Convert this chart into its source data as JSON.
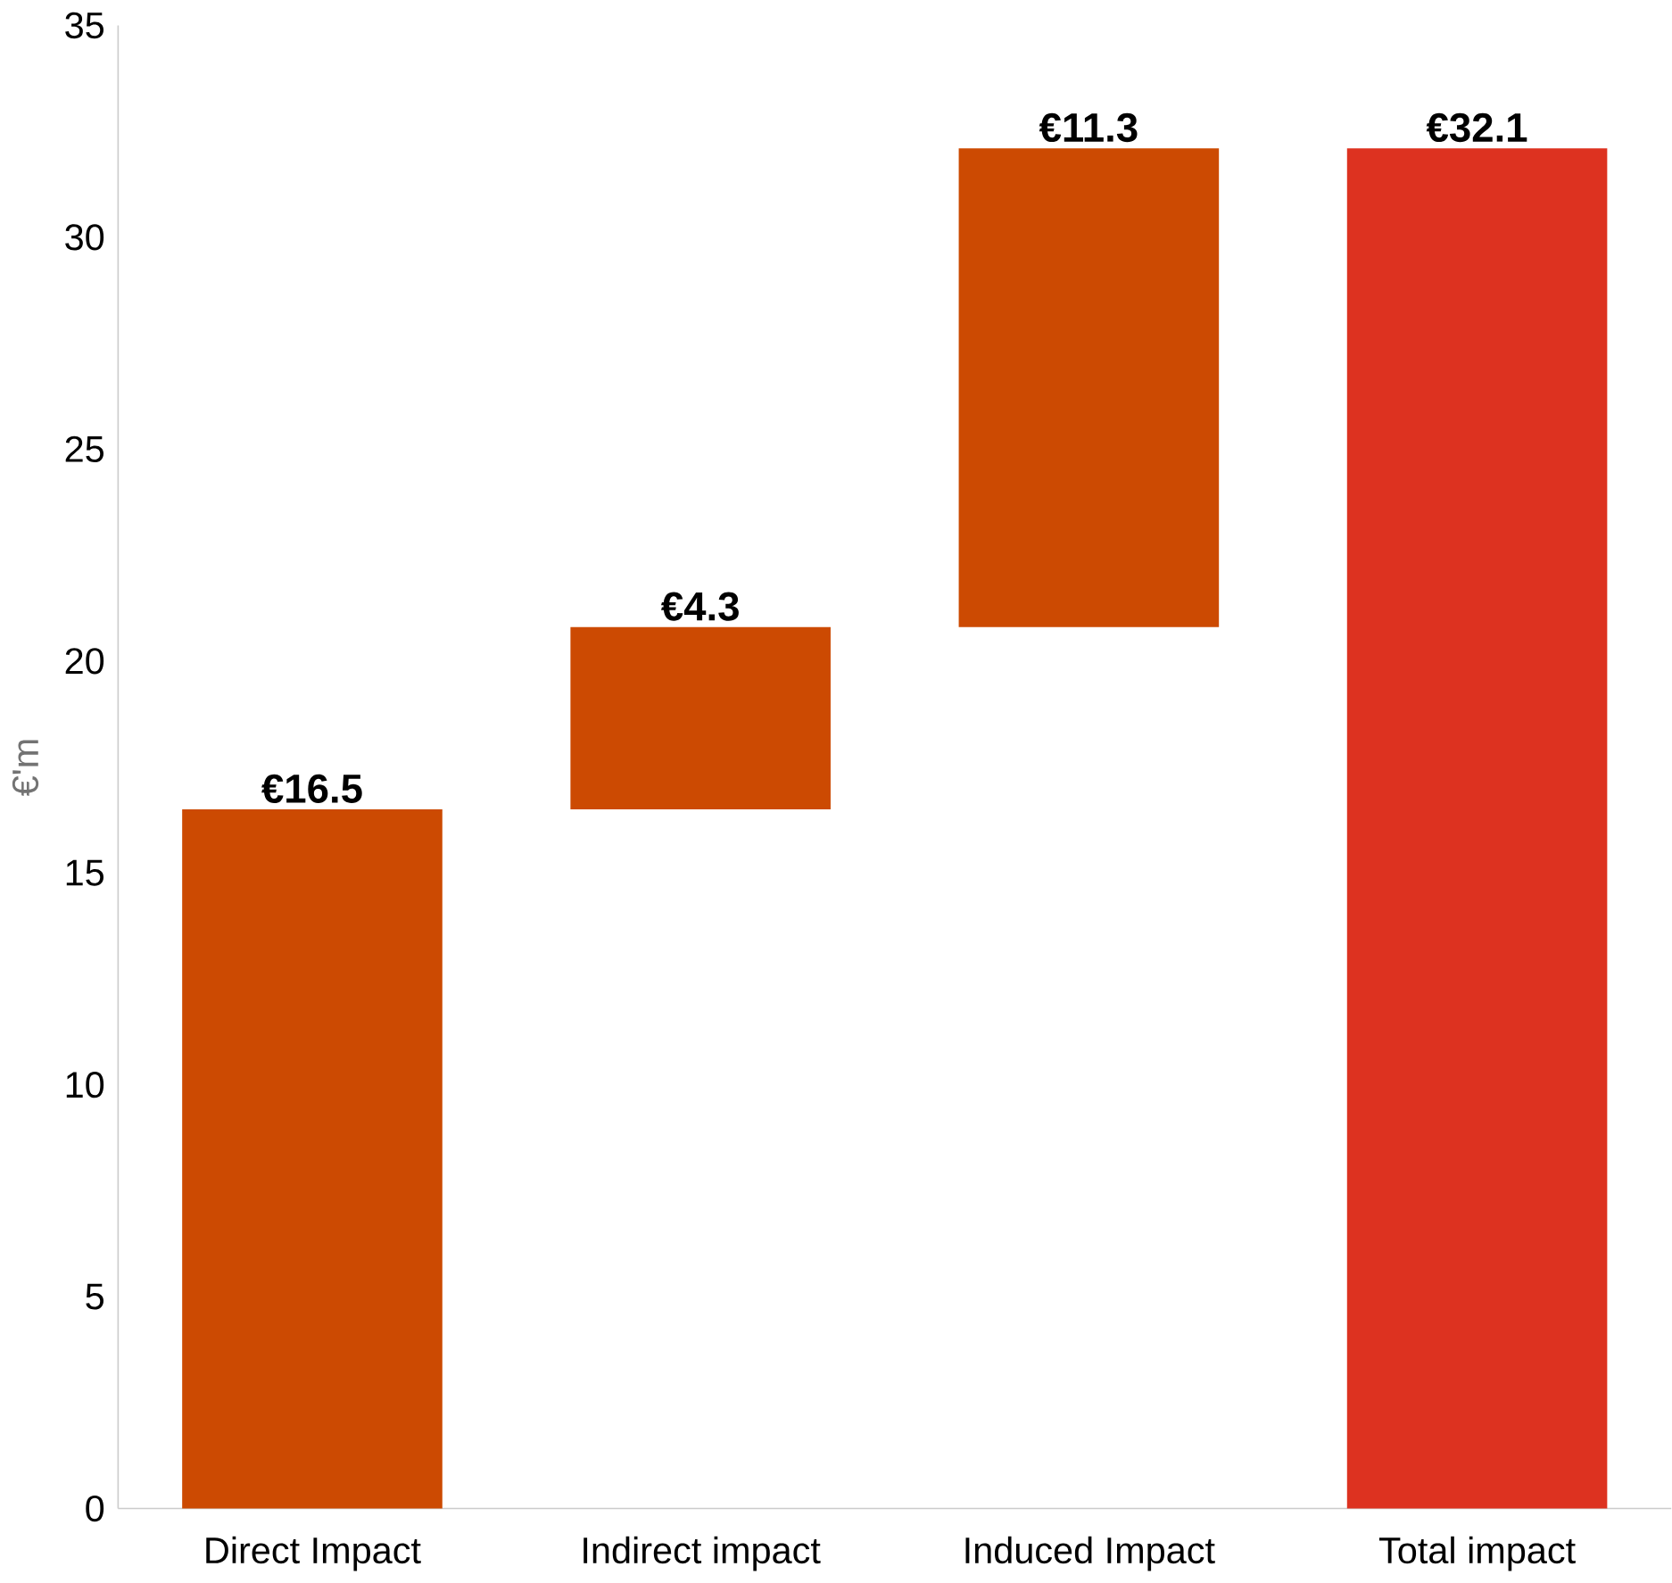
{
  "chart_data": {
    "type": "bar",
    "ylabel": "€'m",
    "categories": [
      "Direct Impact",
      "Indirect impact",
      "Induced Impact",
      "Total impact"
    ],
    "values": [
      16.5,
      4.3,
      11.3,
      32.1
    ],
    "base": [
      0,
      16.5,
      20.8,
      0
    ],
    "colors": [
      "#cc4a02",
      "#cc4a02",
      "#cc4a02",
      "#dd3220"
    ],
    "value_labels": [
      "€16.5",
      "€4.3",
      "€11.3",
      "€32.1"
    ],
    "ylim": [
      0,
      35
    ],
    "yticks": [
      0,
      5,
      10,
      15,
      20,
      25,
      30,
      35
    ]
  }
}
